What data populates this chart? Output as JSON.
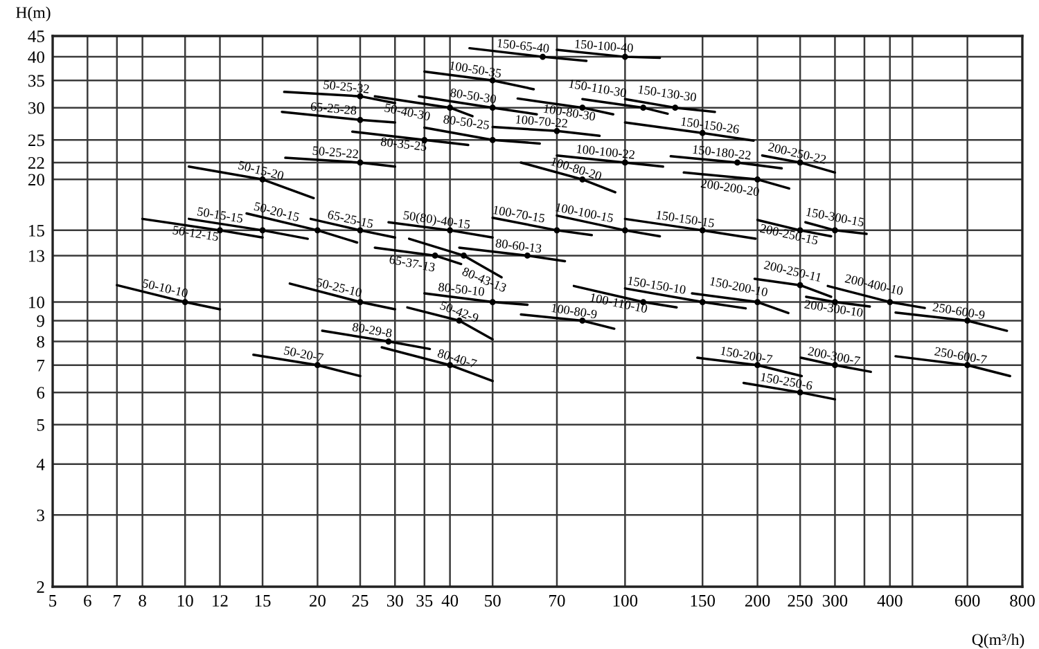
{
  "chart_data": {
    "type": "line",
    "xlabel": "Q(m³/h)",
    "ylabel": "H(m)",
    "log": "xy",
    "grid": true,
    "line_style": "solid",
    "xlim": [
      5,
      800
    ],
    "ylim": [
      2,
      45
    ],
    "xticks": [
      5,
      6,
      7,
      8,
      10,
      12,
      15,
      20,
      25,
      30,
      35,
      40,
      50,
      70,
      100,
      150,
      200,
      250,
      300,
      {
        "value": 350,
        "label": null
      },
      400,
      {
        "value": 450,
        "label": null
      },
      600,
      800
    ],
    "yticks": [
      2,
      3,
      4,
      5,
      6,
      7,
      8,
      9,
      10,
      13,
      15,
      20,
      22,
      25,
      30,
      35,
      40,
      45
    ],
    "series": [
      {
        "name": "150-65-40",
        "color": "#000000",
        "x": [
          44.3,
          65,
          81.7
        ],
        "values": [
          42,
          40,
          39.1
        ]
      },
      {
        "name": "150-100-40",
        "color": "#000000",
        "x": [
          70,
          100,
          120
        ],
        "values": [
          41.6,
          40,
          39.8
        ]
      },
      {
        "name": "100-50-35",
        "color": "#000000",
        "x": [
          35,
          50,
          62
        ],
        "values": [
          36.8,
          35,
          33.3
        ]
      },
      {
        "name": "50-25-32",
        "color": "#000000",
        "x": [
          16.8,
          25,
          30
        ],
        "values": [
          32.8,
          32,
          30.8
        ]
      },
      {
        "name": "80-50-30",
        "color": "#000000",
        "x": [
          34,
          50,
          63
        ],
        "values": [
          32,
          30,
          28.9
        ]
      },
      {
        "name": "50-40-30",
        "color": "#000000",
        "x": [
          27,
          40,
          45
        ],
        "values": [
          32,
          30,
          28.6
        ]
      },
      {
        "name": "100-80-30",
        "color": "#000000",
        "x": [
          57,
          80,
          94
        ],
        "values": [
          31.6,
          30,
          28.9
        ]
      },
      {
        "name": "150-130-30",
        "color": "#000000",
        "x": [
          100,
          130,
          160
        ],
        "values": [
          31.5,
          30,
          29.3
        ]
      },
      {
        "name": "150-110-30",
        "color": "#000000",
        "x": [
          80,
          110,
          125
        ],
        "values": [
          31.5,
          30,
          29
        ]
      },
      {
        "name": "65-25-28",
        "color": "#000000",
        "x": [
          16.6,
          25,
          30
        ],
        "values": [
          29.3,
          28,
          27.6
        ]
      },
      {
        "name": "80-50-25",
        "color": "#000000",
        "x": [
          35,
          50,
          64
        ],
        "values": [
          26.8,
          25,
          24.5
        ]
      },
      {
        "name": "80-35-25",
        "color": "#000000",
        "x": [
          24,
          35,
          44
        ],
        "values": [
          26.2,
          25,
          24.3
        ]
      },
      {
        "name": "100-70-22",
        "color": "#000000",
        "x": [
          50,
          70,
          87.5
        ],
        "values": [
          26.9,
          26.3,
          25.6
        ]
      },
      {
        "name": "150-150-26",
        "color": "#000000",
        "x": [
          100,
          150,
          196
        ],
        "values": [
          27.6,
          26,
          24.9
        ]
      },
      {
        "name": "50-25-22",
        "color": "#000000",
        "x": [
          16.9,
          25,
          30
        ],
        "values": [
          22.6,
          22,
          21.5
        ]
      },
      {
        "name": "100-100-22",
        "color": "#000000",
        "x": [
          70,
          100,
          122
        ],
        "values": [
          22.9,
          22,
          21.5
        ]
      },
      {
        "name": "150-180-22",
        "color": "#000000",
        "x": [
          127,
          180,
          227
        ],
        "values": [
          22.8,
          22,
          21.3
        ]
      },
      {
        "name": "200-250-22",
        "color": "#000000",
        "x": [
          205,
          250,
          300
        ],
        "values": [
          22.9,
          22,
          20.8
        ]
      },
      {
        "name": "100-80-20",
        "color": "#000000",
        "x": [
          58,
          80,
          95
        ],
        "values": [
          22,
          20,
          18.6
        ]
      },
      {
        "name": "200-200-20",
        "color": "#000000",
        "x": [
          136,
          200,
          236
        ],
        "values": [
          20.8,
          20,
          19
        ]
      },
      {
        "name": "50-15-20",
        "color": "#000000",
        "x": [
          10.2,
          15,
          19.6
        ],
        "values": [
          21.5,
          20,
          18
        ]
      },
      {
        "name": "50-15-15",
        "color": "#000000",
        "x": [
          10.2,
          15,
          19
        ],
        "values": [
          16,
          15,
          14.3
        ]
      },
      {
        "name": "50-12-15",
        "color": "#000000",
        "x": [
          8,
          12,
          15
        ],
        "values": [
          16,
          15,
          14.4
        ]
      },
      {
        "name": "50-20-15",
        "color": "#000000",
        "x": [
          13.8,
          20,
          24.6
        ],
        "values": [
          16.5,
          15,
          14
        ]
      },
      {
        "name": "65-25-15",
        "color": "#000000",
        "x": [
          19.3,
          25,
          30
        ],
        "values": [
          16,
          15,
          14.4
        ]
      },
      {
        "name": "50(80)-40-15",
        "color": "#000000",
        "x": [
          29,
          40,
          50
        ],
        "values": [
          15.7,
          15,
          14.4
        ]
      },
      {
        "name": "100-70-15",
        "color": "#000000",
        "x": [
          50,
          70,
          84
        ],
        "values": [
          16.1,
          15,
          14.6
        ]
      },
      {
        "name": "100-100-15",
        "color": "#000000",
        "x": [
          70,
          100,
          120
        ],
        "values": [
          16.3,
          15,
          14.5
        ]
      },
      {
        "name": "150-150-15",
        "color": "#000000",
        "x": [
          100,
          150,
          198
        ],
        "values": [
          16,
          15,
          14.3
        ]
      },
      {
        "name": "200-250-15",
        "color": "#000000",
        "x": [
          200,
          250,
          294
        ],
        "values": [
          15.9,
          15,
          14.5
        ]
      },
      {
        "name": "150-300-15",
        "color": "#000000",
        "x": [
          257,
          300,
          354
        ],
        "values": [
          15.7,
          15,
          14.7
        ]
      },
      {
        "name": "80-43-13",
        "color": "#000000",
        "x": [
          32.3,
          43,
          52.4
        ],
        "values": [
          14.3,
          13,
          11.5
        ]
      },
      {
        "name": "65-37-13",
        "color": "#000000",
        "x": [
          27,
          37,
          42.4
        ],
        "values": [
          13.6,
          13,
          12.4
        ]
      },
      {
        "name": "80-60-13",
        "color": "#000000",
        "x": [
          42,
          60,
          73
        ],
        "values": [
          13.6,
          13,
          12.6
        ]
      },
      {
        "name": "50-10-10",
        "color": "#000000",
        "x": [
          7,
          10,
          12
        ],
        "values": [
          11,
          10,
          9.6
        ]
      },
      {
        "name": "50-25-10",
        "color": "#000000",
        "x": [
          17.3,
          25,
          30
        ],
        "values": [
          11.1,
          10,
          9.6
        ]
      },
      {
        "name": "80-50-10",
        "color": "#000000",
        "x": [
          35,
          50,
          60
        ],
        "values": [
          10.5,
          10,
          9.85
        ]
      },
      {
        "name": "100-110-10",
        "color": "#000000",
        "x": [
          76.5,
          110,
          131
        ],
        "values": [
          10.95,
          10,
          9.7
        ]
      },
      {
        "name": "150-150-10",
        "color": "#000000",
        "x": [
          100,
          150,
          188
        ],
        "values": [
          10.8,
          10,
          9.65
        ]
      },
      {
        "name": "150-200-10",
        "color": "#000000",
        "x": [
          142,
          200,
          235
        ],
        "values": [
          10.5,
          10,
          9.4
        ]
      },
      {
        "name": "200-250-11",
        "color": "#000000",
        "x": [
          197,
          250,
          294
        ],
        "values": [
          11.4,
          11,
          10.3
        ]
      },
      {
        "name": "200-300-10",
        "color": "#000000",
        "x": [
          258,
          300,
          360
        ],
        "values": [
          10.3,
          10,
          9.75
        ]
      },
      {
        "name": "200-400-10",
        "color": "#000000",
        "x": [
          289,
          400,
          480
        ],
        "values": [
          10.95,
          10,
          9.67
        ]
      },
      {
        "name": "250-600-9",
        "color": "#000000",
        "x": [
          412,
          600,
          738
        ],
        "values": [
          9.42,
          9,
          8.5
        ]
      },
      {
        "name": "50-42-9",
        "color": "#000000",
        "x": [
          32,
          42,
          50
        ],
        "values": [
          9.7,
          9,
          8.1
        ]
      },
      {
        "name": "100-80-9",
        "color": "#000000",
        "x": [
          58,
          80,
          94.5
        ],
        "values": [
          9.32,
          9,
          8.6
        ]
      },
      {
        "name": "80-29-8",
        "color": "#000000",
        "x": [
          20.5,
          29,
          36
        ],
        "values": [
          8.5,
          8,
          7.67
        ]
      },
      {
        "name": "50-20-7",
        "color": "#000000",
        "x": [
          14.3,
          20,
          25
        ],
        "values": [
          7.42,
          7,
          6.58
        ]
      },
      {
        "name": "80-40-7",
        "color": "#000000",
        "x": [
          28,
          40,
          50
        ],
        "values": [
          7.74,
          7,
          6.4
        ]
      },
      {
        "name": "150-200-7",
        "color": "#000000",
        "x": [
          146,
          200,
          252
        ],
        "values": [
          7.3,
          7,
          6.58
        ]
      },
      {
        "name": "200-300-7",
        "color": "#000000",
        "x": [
          251,
          300,
          362
        ],
        "values": [
          7.3,
          7,
          6.74
        ]
      },
      {
        "name": "250-600-7",
        "color": "#000000",
        "x": [
          412,
          600,
          750
        ],
        "values": [
          7.36,
          7,
          6.58
        ]
      },
      {
        "name": "150-250-6",
        "color": "#000000",
        "x": [
          186,
          250,
          300
        ],
        "values": [
          6.33,
          6,
          5.77
        ]
      },
      {
        "type": "scatter",
        "color": "#000000",
        "marker": "circle",
        "x": [
          65,
          100,
          50,
          25,
          50,
          40,
          80,
          130,
          110,
          25,
          50,
          35,
          70,
          150,
          25,
          100,
          180,
          250,
          80,
          200,
          15,
          15,
          12,
          20,
          25,
          40,
          70,
          100,
          150,
          250,
          300,
          43,
          37,
          60,
          10,
          25,
          50,
          110,
          150,
          200,
          250,
          300,
          400,
          600,
          42,
          80,
          29,
          20,
          40,
          200,
          300,
          600,
          250
        ],
        "values": [
          40,
          40,
          35,
          32,
          30,
          30,
          30,
          30,
          30,
          28,
          25,
          25,
          26.3,
          26,
          22,
          22,
          22,
          22,
          20,
          20,
          20,
          15,
          15,
          15,
          15,
          15,
          15,
          15,
          15,
          15,
          15,
          13,
          13,
          13,
          10,
          10,
          10,
          10,
          10,
          10,
          11,
          10,
          10,
          9,
          9,
          9,
          8,
          7,
          7,
          7,
          7,
          7,
          6
        ]
      }
    ]
  }
}
